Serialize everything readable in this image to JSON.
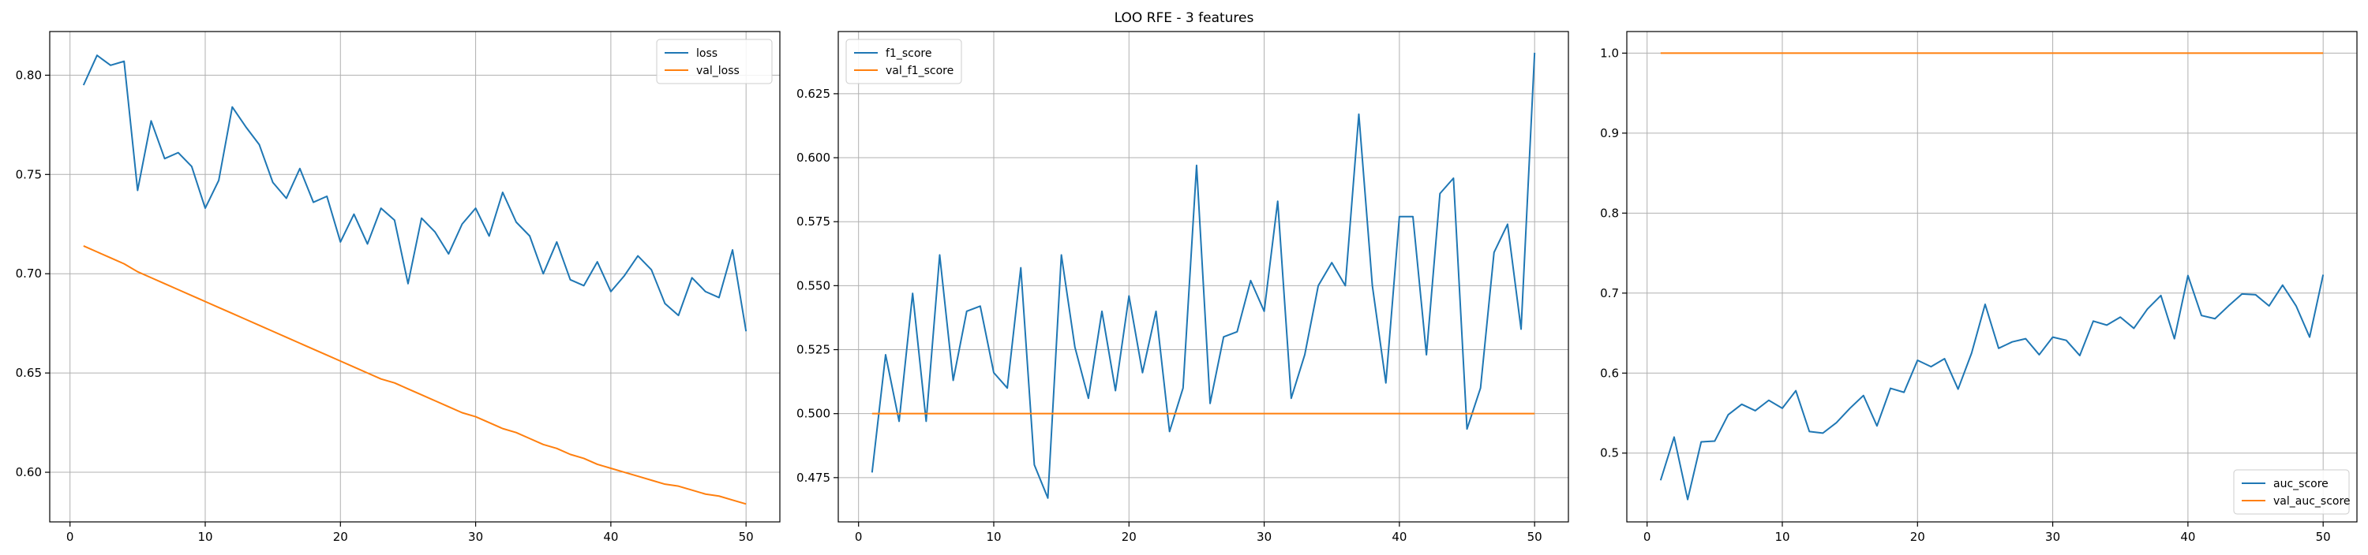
{
  "figure": {
    "suptitle": "LOO RFE - 3 features"
  },
  "colors": {
    "blue": "#1f77b4",
    "orange": "#ff7f0e",
    "grid": "#b0b0b0",
    "axes": "#000000"
  },
  "chart_data": [
    {
      "type": "line",
      "title": "",
      "xlabel": "",
      "ylabel": "",
      "xlim": [
        -1.5,
        52.5
      ],
      "ylim": [
        0.575,
        0.822
      ],
      "xticks": [
        0,
        10,
        20,
        30,
        40,
        50
      ],
      "yticks": [
        0.6,
        0.65,
        0.7,
        0.75,
        0.8
      ],
      "ytick_labels": [
        "0.60",
        "0.65",
        "0.70",
        "0.75",
        "0.80"
      ],
      "grid": true,
      "legend": "upper right",
      "x": [
        1,
        2,
        3,
        4,
        5,
        6,
        7,
        8,
        9,
        10,
        11,
        12,
        13,
        14,
        15,
        16,
        17,
        18,
        19,
        20,
        21,
        22,
        23,
        24,
        25,
        26,
        27,
        28,
        29,
        30,
        31,
        32,
        33,
        34,
        35,
        36,
        37,
        38,
        39,
        40,
        41,
        42,
        43,
        44,
        45,
        46,
        47,
        48,
        49,
        50
      ],
      "series": [
        {
          "name": "loss",
          "color": "#1f77b4",
          "values": [
            0.795,
            0.81,
            0.805,
            0.807,
            0.742,
            0.777,
            0.758,
            0.761,
            0.754,
            0.733,
            0.747,
            0.784,
            0.774,
            0.765,
            0.746,
            0.738,
            0.753,
            0.736,
            0.739,
            0.716,
            0.73,
            0.715,
            0.733,
            0.727,
            0.695,
            0.728,
            0.721,
            0.71,
            0.725,
            0.733,
            0.719,
            0.741,
            0.726,
            0.719,
            0.7,
            0.716,
            0.697,
            0.694,
            0.706,
            0.691,
            0.699,
            0.709,
            0.702,
            0.685,
            0.679,
            0.698,
            0.691,
            0.688,
            0.712,
            0.671
          ]
        },
        {
          "name": "val_loss",
          "color": "#ff7f0e",
          "values": [
            0.714,
            0.711,
            0.708,
            0.705,
            0.701,
            0.698,
            0.695,
            0.692,
            0.689,
            0.686,
            0.683,
            0.68,
            0.677,
            0.674,
            0.671,
            0.668,
            0.665,
            0.662,
            0.659,
            0.656,
            0.653,
            0.65,
            0.647,
            0.645,
            0.642,
            0.639,
            0.636,
            0.633,
            0.63,
            0.628,
            0.625,
            0.622,
            0.62,
            0.617,
            0.614,
            0.612,
            0.609,
            0.607,
            0.604,
            0.602,
            0.6,
            0.598,
            0.596,
            0.594,
            0.593,
            0.591,
            0.589,
            0.588,
            0.586,
            0.584
          ]
        }
      ]
    },
    {
      "type": "line",
      "title": "",
      "xlabel": "",
      "ylabel": "",
      "xlim": [
        -1.5,
        52.5
      ],
      "ylim": [
        0.4577,
        0.6493
      ],
      "xticks": [
        0,
        10,
        20,
        30,
        40,
        50
      ],
      "yticks": [
        0.475,
        0.5,
        0.525,
        0.55,
        0.575,
        0.6,
        0.625
      ],
      "ytick_labels": [
        "0.475",
        "0.500",
        "0.525",
        "0.550",
        "0.575",
        "0.600",
        "0.625"
      ],
      "grid": true,
      "legend": "upper left",
      "x": [
        1,
        2,
        3,
        4,
        5,
        6,
        7,
        8,
        9,
        10,
        11,
        12,
        13,
        14,
        15,
        16,
        17,
        18,
        19,
        20,
        21,
        22,
        23,
        24,
        25,
        26,
        27,
        28,
        29,
        30,
        31,
        32,
        33,
        34,
        35,
        36,
        37,
        38,
        39,
        40,
        41,
        42,
        43,
        44,
        45,
        46,
        47,
        48,
        49,
        50
      ],
      "series": [
        {
          "name": "f1_score",
          "color": "#1f77b4",
          "values": [
            0.477,
            0.523,
            0.497,
            0.547,
            0.497,
            0.562,
            0.513,
            0.54,
            0.542,
            0.516,
            0.51,
            0.557,
            0.48,
            0.467,
            0.562,
            0.526,
            0.506,
            0.54,
            0.509,
            0.546,
            0.516,
            0.54,
            0.493,
            0.51,
            0.597,
            0.504,
            0.53,
            0.532,
            0.552,
            0.54,
            0.583,
            0.506,
            0.523,
            0.55,
            0.559,
            0.55,
            0.617,
            0.55,
            0.512,
            0.577,
            0.577,
            0.523,
            0.586,
            0.592,
            0.494,
            0.51,
            0.563,
            0.574,
            0.533,
            0.641
          ]
        },
        {
          "name": "val_f1_score",
          "color": "#ff7f0e",
          "values": [
            0.5,
            0.5,
            0.5,
            0.5,
            0.5,
            0.5,
            0.5,
            0.5,
            0.5,
            0.5,
            0.5,
            0.5,
            0.5,
            0.5,
            0.5,
            0.5,
            0.5,
            0.5,
            0.5,
            0.5,
            0.5,
            0.5,
            0.5,
            0.5,
            0.5,
            0.5,
            0.5,
            0.5,
            0.5,
            0.5,
            0.5,
            0.5,
            0.5,
            0.5,
            0.5,
            0.5,
            0.5,
            0.5,
            0.5,
            0.5,
            0.5,
            0.5,
            0.5,
            0.5,
            0.5,
            0.5,
            0.5,
            0.5,
            0.5,
            0.5
          ]
        }
      ]
    },
    {
      "type": "line",
      "title": "",
      "xlabel": "",
      "ylabel": "",
      "xlim": [
        -1.5,
        52.5
      ],
      "ylim": [
        0.414,
        1.027
      ],
      "xticks": [
        0,
        10,
        20,
        30,
        40,
        50
      ],
      "yticks": [
        0.5,
        0.6,
        0.7,
        0.8,
        0.9,
        1.0
      ],
      "ytick_labels": [
        "0.5",
        "0.6",
        "0.7",
        "0.8",
        "0.9",
        "1.0"
      ],
      "grid": true,
      "legend": "lower right",
      "x": [
        1,
        2,
        3,
        4,
        5,
        6,
        7,
        8,
        9,
        10,
        11,
        12,
        13,
        14,
        15,
        16,
        17,
        18,
        19,
        20,
        21,
        22,
        23,
        24,
        25,
        26,
        27,
        28,
        29,
        30,
        31,
        32,
        33,
        34,
        35,
        36,
        37,
        38,
        39,
        40,
        41,
        42,
        43,
        44,
        45,
        46,
        47,
        48,
        49,
        50
      ],
      "series": [
        {
          "name": "auc_score",
          "color": "#1f77b4",
          "values": [
            0.466,
            0.52,
            0.442,
            0.514,
            0.515,
            0.548,
            0.561,
            0.553,
            0.566,
            0.556,
            0.578,
            0.527,
            0.525,
            0.538,
            0.556,
            0.572,
            0.534,
            0.581,
            0.576,
            0.616,
            0.608,
            0.618,
            0.58,
            0.625,
            0.686,
            0.631,
            0.639,
            0.643,
            0.623,
            0.645,
            0.641,
            0.622,
            0.665,
            0.66,
            0.67,
            0.656,
            0.68,
            0.697,
            0.643,
            0.722,
            0.672,
            0.668,
            0.684,
            0.699,
            0.698,
            0.684,
            0.71,
            0.684,
            0.645,
            0.723
          ]
        },
        {
          "name": "val_auc_score",
          "color": "#ff7f0e",
          "values": [
            1,
            1,
            1,
            1,
            1,
            1,
            1,
            1,
            1,
            1,
            1,
            1,
            1,
            1,
            1,
            1,
            1,
            1,
            1,
            1,
            1,
            1,
            1,
            1,
            1,
            1,
            1,
            1,
            1,
            1,
            1,
            1,
            1,
            1,
            1,
            1,
            1,
            1,
            1,
            1,
            1,
            1,
            1,
            1,
            1,
            1,
            1,
            1,
            1,
            1
          ]
        }
      ]
    }
  ]
}
